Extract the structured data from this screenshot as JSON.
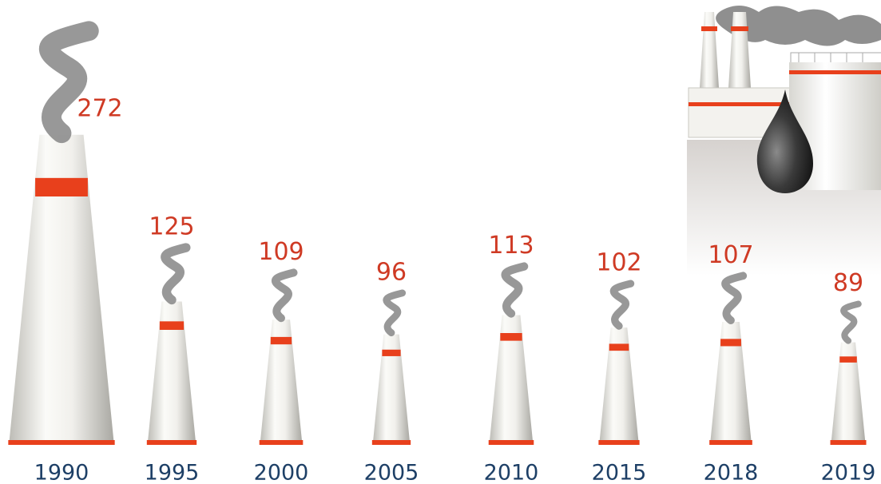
{
  "chart_data": {
    "type": "bar",
    "categories": [
      "1990",
      "1995",
      "2000",
      "2005",
      "2010",
      "2015",
      "2018",
      "2019"
    ],
    "values": [
      272,
      125,
      109,
      96,
      113,
      102,
      107,
      89
    ]
  }
}
